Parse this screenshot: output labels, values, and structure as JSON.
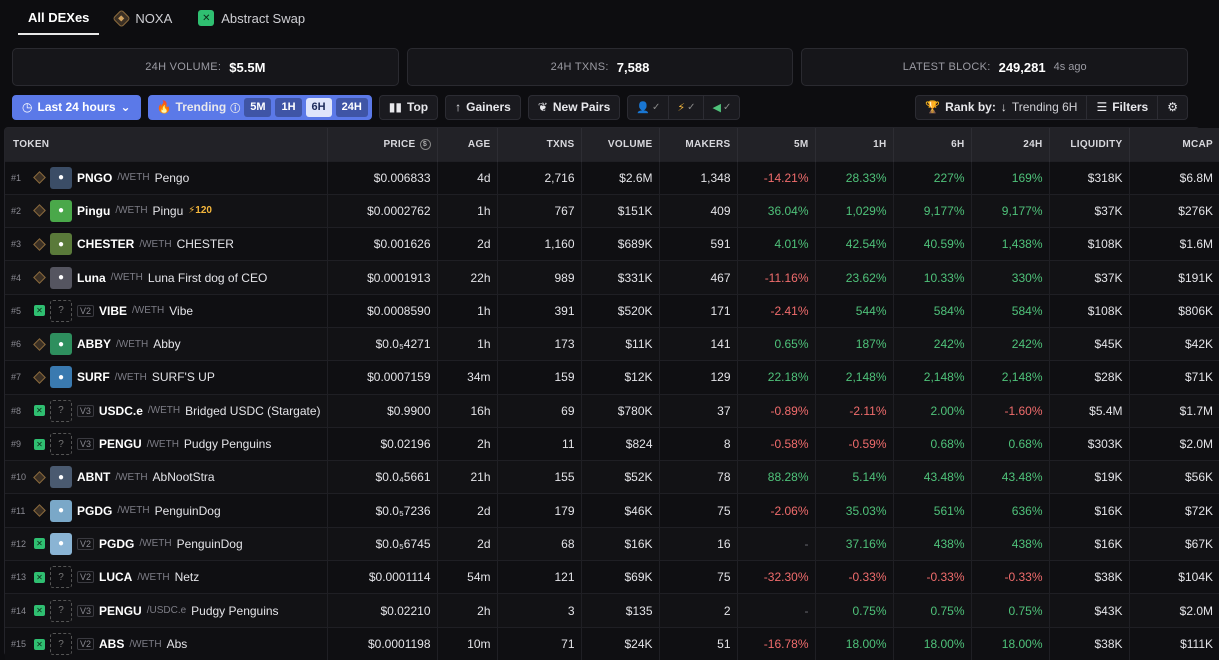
{
  "dex_tabs": [
    {
      "label": "All DEXes",
      "active": true
    },
    {
      "label": "NOXA",
      "active": false
    },
    {
      "label": "Abstract Swap",
      "active": false
    }
  ],
  "stats": {
    "volume_label": "24H VOLUME:",
    "volume_value": "$5.5M",
    "txns_label": "24H TXNS:",
    "txns_value": "7,588",
    "block_label": "LATEST BLOCK:",
    "block_value": "249,281",
    "block_ago": "4s ago"
  },
  "filters": {
    "timeframe": "Last 24 hours",
    "trending_label": "Trending",
    "segments": [
      "5M",
      "1H",
      "6H",
      "24H"
    ],
    "active_segment": "6H",
    "top_label": "Top",
    "gainers_label": "Gainers",
    "new_pairs_label": "New Pairs",
    "rank_by_label": "Rank by:",
    "rank_by_value": "Trending 6H",
    "filters_label": "Filters"
  },
  "columns": [
    "TOKEN",
    "PRICE",
    "AGE",
    "TXNS",
    "VOLUME",
    "MAKERS",
    "5M",
    "1H",
    "6H",
    "24H",
    "LIQUIDITY",
    "MCAP"
  ],
  "colors": {
    "accent": "#5b79e8",
    "positive": "#4fc27a",
    "negative": "#f06c6c"
  },
  "rows": [
    {
      "rank": "#1",
      "dex": "noxa",
      "ver": "",
      "avatar": "#3b4d66",
      "symbol": "PNGO",
      "pair": "/WETH",
      "name": "Pengo",
      "boost": "",
      "price": "$0.006833",
      "age": "4d",
      "txns": "2,716",
      "volume": "$2.6M",
      "makers": "1,348",
      "m5": "-14.21%",
      "h1": "28.33%",
      "h6": "227%",
      "h24": "169%",
      "liq": "$318K",
      "mcap": "$6.8M"
    },
    {
      "rank": "#2",
      "dex": "noxa",
      "ver": "",
      "avatar": "#4aa84a",
      "symbol": "Pingu",
      "pair": "/WETH",
      "name": "Pingu",
      "boost": "⚡120",
      "price": "$0.0002762",
      "age": "1h",
      "txns": "767",
      "volume": "$151K",
      "makers": "409",
      "m5": "36.04%",
      "h1": "1,029%",
      "h6": "9,177%",
      "h24": "9,177%",
      "liq": "$37K",
      "mcap": "$276K"
    },
    {
      "rank": "#3",
      "dex": "noxa",
      "ver": "",
      "avatar": "#5a7a3a",
      "symbol": "CHESTER",
      "pair": "/WETH",
      "name": "CHESTER",
      "boost": "",
      "price": "$0.001626",
      "age": "2d",
      "txns": "1,160",
      "volume": "$689K",
      "makers": "591",
      "m5": "4.01%",
      "h1": "42.54%",
      "h6": "40.59%",
      "h24": "1,438%",
      "liq": "$108K",
      "mcap": "$1.6M"
    },
    {
      "rank": "#4",
      "dex": "noxa",
      "ver": "",
      "avatar": "#555560",
      "symbol": "Luna",
      "pair": "/WETH",
      "name": "Luna First dog of CEO",
      "boost": "",
      "price": "$0.0001913",
      "age": "22h",
      "txns": "989",
      "volume": "$331K",
      "makers": "467",
      "m5": "-11.16%",
      "h1": "23.62%",
      "h6": "10.33%",
      "h24": "330%",
      "liq": "$37K",
      "mcap": "$191K"
    },
    {
      "rank": "#5",
      "dex": "abs",
      "ver": "V2",
      "avatar": "",
      "symbol": "VIBE",
      "pair": "/WETH",
      "name": "Vibe",
      "boost": "",
      "price": "$0.0008590",
      "age": "1h",
      "txns": "391",
      "volume": "$520K",
      "makers": "171",
      "m5": "-2.41%",
      "h1": "544%",
      "h6": "584%",
      "h24": "584%",
      "liq": "$108K",
      "mcap": "$806K"
    },
    {
      "rank": "#6",
      "dex": "noxa",
      "ver": "",
      "avatar": "#2e8f5e",
      "symbol": "ABBY",
      "pair": "/WETH",
      "name": "Abby",
      "boost": "",
      "price": "$0.0₅4271",
      "age": "1h",
      "txns": "173",
      "volume": "$11K",
      "makers": "141",
      "m5": "0.65%",
      "h1": "187%",
      "h6": "242%",
      "h24": "242%",
      "liq": "$45K",
      "mcap": "$42K"
    },
    {
      "rank": "#7",
      "dex": "noxa",
      "ver": "",
      "avatar": "#3a7ab0",
      "symbol": "SURF",
      "pair": "/WETH",
      "name": "SURF'S UP",
      "boost": "",
      "price": "$0.0007159",
      "age": "34m",
      "txns": "159",
      "volume": "$12K",
      "makers": "129",
      "m5": "22.18%",
      "h1": "2,148%",
      "h6": "2,148%",
      "h24": "2,148%",
      "liq": "$28K",
      "mcap": "$71K"
    },
    {
      "rank": "#8",
      "dex": "abs",
      "ver": "V3",
      "avatar": "",
      "symbol": "USDC.e",
      "pair": "/WETH",
      "name": "Bridged USDC (Stargate)",
      "boost": "",
      "price": "$0.9900",
      "age": "16h",
      "txns": "69",
      "volume": "$780K",
      "makers": "37",
      "m5": "-0.89%",
      "h1": "-2.11%",
      "h6": "2.00%",
      "h24": "-1.60%",
      "liq": "$5.4M",
      "mcap": "$1.7M"
    },
    {
      "rank": "#9",
      "dex": "abs",
      "ver": "V3",
      "avatar": "",
      "symbol": "PENGU",
      "pair": "/WETH",
      "name": "Pudgy Penguins",
      "boost": "",
      "price": "$0.02196",
      "age": "2h",
      "txns": "11",
      "volume": "$824",
      "makers": "8",
      "m5": "-0.58%",
      "h1": "-0.59%",
      "h6": "0.68%",
      "h24": "0.68%",
      "liq": "$303K",
      "mcap": "$2.0M"
    },
    {
      "rank": "#10",
      "dex": "noxa",
      "ver": "",
      "avatar": "#4a5a70",
      "symbol": "ABNT",
      "pair": "/WETH",
      "name": "AbNootStra",
      "boost": "",
      "price": "$0.0₄5661",
      "age": "21h",
      "txns": "155",
      "volume": "$52K",
      "makers": "78",
      "m5": "88.28%",
      "h1": "5.14%",
      "h6": "43.48%",
      "h24": "43.48%",
      "liq": "$19K",
      "mcap": "$56K"
    },
    {
      "rank": "#11",
      "dex": "noxa",
      "ver": "",
      "avatar": "#7aa8c8",
      "symbol": "PGDG",
      "pair": "/WETH",
      "name": "PenguinDog",
      "boost": "",
      "price": "$0.0₅7236",
      "age": "2d",
      "txns": "179",
      "volume": "$46K",
      "makers": "75",
      "m5": "-2.06%",
      "h1": "35.03%",
      "h6": "561%",
      "h24": "636%",
      "liq": "$16K",
      "mcap": "$72K"
    },
    {
      "rank": "#12",
      "dex": "abs",
      "ver": "V2",
      "avatar": "#8ab4d4",
      "symbol": "PGDG",
      "pair": "/WETH",
      "name": "PenguinDog",
      "boost": "",
      "price": "$0.0₅6745",
      "age": "2d",
      "txns": "68",
      "volume": "$16K",
      "makers": "16",
      "m5": "-",
      "h1": "37.16%",
      "h6": "438%",
      "h24": "438%",
      "liq": "$16K",
      "mcap": "$67K"
    },
    {
      "rank": "#13",
      "dex": "abs",
      "ver": "V2",
      "avatar": "",
      "symbol": "LUCA",
      "pair": "/WETH",
      "name": "Netz",
      "boost": "",
      "price": "$0.0001114",
      "age": "54m",
      "txns": "121",
      "volume": "$69K",
      "makers": "75",
      "m5": "-32.30%",
      "h1": "-0.33%",
      "h6": "-0.33%",
      "h24": "-0.33%",
      "liq": "$38K",
      "mcap": "$104K"
    },
    {
      "rank": "#14",
      "dex": "abs",
      "ver": "V3",
      "avatar": "",
      "symbol": "PENGU",
      "pair": "/USDC.e",
      "name": "Pudgy Penguins",
      "boost": "",
      "price": "$0.02210",
      "age": "2h",
      "txns": "3",
      "volume": "$135",
      "makers": "2",
      "m5": "-",
      "h1": "0.75%",
      "h6": "0.75%",
      "h24": "0.75%",
      "liq": "$43K",
      "mcap": "$2.0M"
    },
    {
      "rank": "#15",
      "dex": "abs",
      "ver": "V2",
      "avatar": "",
      "symbol": "ABS",
      "pair": "/WETH",
      "name": "Abs",
      "boost": "",
      "price": "$0.0001198",
      "age": "10m",
      "txns": "71",
      "volume": "$24K",
      "makers": "51",
      "m5": "-16.78%",
      "h1": "18.00%",
      "h6": "18.00%",
      "h24": "18.00%",
      "liq": "$38K",
      "mcap": "$111K"
    }
  ]
}
